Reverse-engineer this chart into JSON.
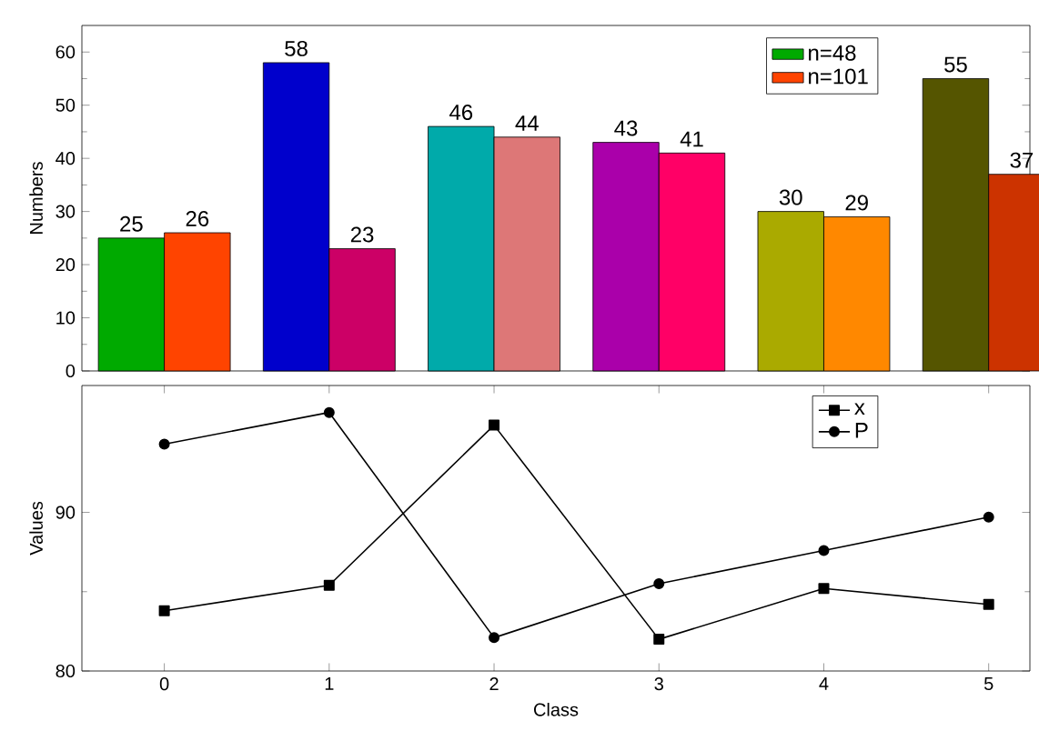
{
  "chart_data": [
    {
      "type": "bar",
      "ylabel": "Numbers",
      "categories": [
        null,
        null,
        null,
        null,
        null,
        null
      ],
      "series": [
        {
          "name": "n=48",
          "color": "#00aa00",
          "colors": [
            "#00aa00",
            "#0000cc",
            "#00aaaa",
            "#aa00aa",
            "#aaaa00",
            "#555500"
          ],
          "values": [
            25,
            58,
            46,
            43,
            30,
            55
          ]
        },
        {
          "name": "n=101",
          "color": "#ff4400",
          "colors": [
            "#ff4400",
            "#cc0066",
            "#dd7777",
            "#ff0066",
            "#ff8800",
            "#cc3300"
          ],
          "values": [
            26,
            23,
            44,
            41,
            29,
            37
          ]
        }
      ],
      "ylim": [
        0,
        65
      ],
      "yticks": [
        0,
        10,
        20,
        30,
        40,
        50,
        60
      ],
      "data_labels": true,
      "legend": "top right",
      "tick_labels": "y"
    },
    {
      "type": "line",
      "xlabel": "Class",
      "ylabel": "Values",
      "x": [
        0,
        1,
        2,
        3,
        4,
        5
      ],
      "series": [
        {
          "name": "x",
          "color": "#000000",
          "marker": "square",
          "values": [
            83.8,
            85.4,
            95.5,
            82.0,
            85.2,
            84.2
          ]
        },
        {
          "name": "P",
          "color": "#000000",
          "marker": "circle",
          "values": [
            94.3,
            96.3,
            82.1,
            85.5,
            87.6,
            89.7
          ]
        }
      ],
      "xlim": [
        -0.5,
        5.25
      ],
      "xticks": [
        0,
        1,
        2,
        3,
        4,
        5
      ],
      "ylim": [
        80,
        98
      ],
      "yticks": [
        80,
        90
      ],
      "legend": "top right"
    }
  ]
}
